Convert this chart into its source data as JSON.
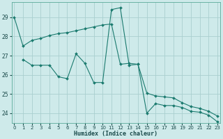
{
  "xlabel": "Humidex (Indice chaleur)",
  "background_color": "#ceeaea",
  "grid_color": "#aacfcf",
  "line_color": "#1a7a6e",
  "series1_x": [
    0,
    1,
    2,
    3,
    4,
    5,
    6,
    7,
    8,
    9,
    10,
    11,
    12,
    13,
    14,
    15,
    16,
    17,
    18,
    19,
    20,
    21,
    22,
    23
  ],
  "series1_y": [
    29.0,
    27.5,
    27.8,
    27.9,
    28.05,
    28.15,
    28.2,
    28.3,
    28.4,
    28.5,
    28.6,
    28.65,
    26.55,
    26.6,
    26.55,
    25.05,
    24.9,
    24.85,
    24.8,
    24.55,
    24.35,
    24.25,
    24.1,
    23.85
  ],
  "series2_x": [
    1,
    2,
    3,
    4,
    5,
    6,
    7,
    8,
    9,
    10,
    11,
    12,
    13,
    14,
    15,
    16,
    17,
    18,
    19,
    20,
    21,
    22,
    23
  ],
  "series2_y": [
    26.8,
    26.5,
    26.5,
    26.5,
    25.9,
    25.8,
    27.1,
    26.6,
    25.6,
    25.6,
    29.4,
    29.5,
    26.5,
    26.55,
    24.0,
    24.5,
    24.4,
    24.4,
    24.3,
    24.1,
    24.05,
    23.9,
    23.55
  ],
  "ylim": [
    23.5,
    29.8
  ],
  "xlim": [
    -0.3,
    23.3
  ],
  "yticks": [
    24,
    25,
    26,
    27,
    28,
    29
  ],
  "xticks": [
    0,
    1,
    2,
    3,
    4,
    5,
    6,
    7,
    8,
    9,
    10,
    11,
    12,
    13,
    14,
    15,
    16,
    17,
    18,
    19,
    20,
    21,
    22,
    23
  ]
}
